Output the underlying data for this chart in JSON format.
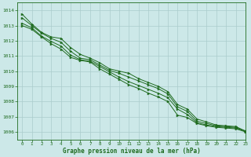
{
  "title": "Graphe pression niveau de la mer (hPa)",
  "xlim": [
    -0.5,
    23
  ],
  "ylim": [
    1005.5,
    1014.5
  ],
  "yticks": [
    1006,
    1007,
    1008,
    1009,
    1010,
    1011,
    1012,
    1013,
    1014
  ],
  "xticks": [
    0,
    1,
    2,
    3,
    4,
    5,
    6,
    7,
    8,
    9,
    10,
    11,
    12,
    13,
    14,
    15,
    16,
    17,
    18,
    19,
    20,
    21,
    22,
    23
  ],
  "line_color": "#1f6b1f",
  "bg_color": "#cce8e8",
  "grid_color": "#aacccc",
  "tick_label_color": "#1f6b1f",
  "title_color": "#1f6b1f",
  "series": [
    [
      1013.75,
      1013.1,
      1012.55,
      1012.25,
      1012.15,
      1011.55,
      1011.1,
      1010.85,
      1010.55,
      1010.15,
      1010.0,
      1009.85,
      1009.5,
      1009.25,
      1009.0,
      1008.65,
      1007.8,
      1007.5,
      1006.85,
      1006.65,
      1006.45,
      1006.4,
      1006.35,
      1006.05
    ],
    [
      1013.5,
      1013.0,
      1012.5,
      1012.15,
      1011.9,
      1011.3,
      1010.85,
      1010.75,
      1010.4,
      1010.05,
      1009.85,
      1009.6,
      1009.35,
      1009.1,
      1008.85,
      1008.5,
      1007.65,
      1007.35,
      1006.7,
      1006.55,
      1006.4,
      1006.35,
      1006.3,
      1006.05
    ],
    [
      1013.15,
      1012.85,
      1012.3,
      1011.95,
      1011.65,
      1011.05,
      1010.75,
      1010.65,
      1010.3,
      1009.95,
      1009.6,
      1009.3,
      1009.05,
      1008.8,
      1008.55,
      1008.25,
      1007.5,
      1007.15,
      1006.6,
      1006.45,
      1006.35,
      1006.3,
      1006.25,
      1006.05
    ],
    [
      1013.0,
      1012.75,
      1012.25,
      1011.8,
      1011.45,
      1010.9,
      1010.7,
      1010.6,
      1010.15,
      1009.8,
      1009.45,
      1009.1,
      1008.85,
      1008.55,
      1008.3,
      1008.0,
      1007.1,
      1006.95,
      1006.55,
      1006.4,
      1006.3,
      1006.25,
      1006.2,
      1006.0
    ]
  ]
}
